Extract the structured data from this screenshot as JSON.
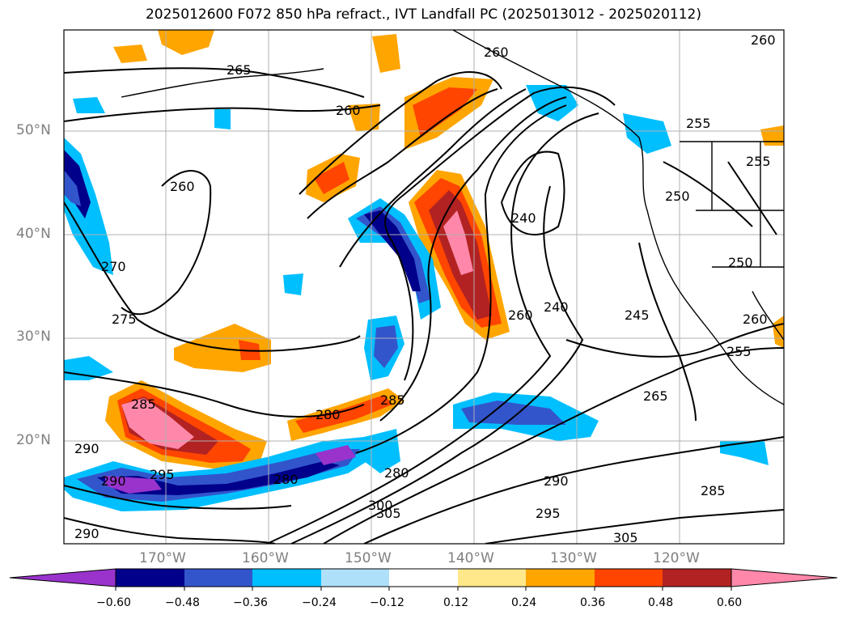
{
  "title": "2025012600 F072 850 hPa refract., IVT Landfall PC (2025013012 - 2025020112)",
  "lat_labels": [
    "50°N",
    "40°N",
    "30°N",
    "20°N"
  ],
  "lon_labels": [
    "170°W",
    "160°W",
    "150°W",
    "140°W",
    "130°W",
    "120°W"
  ],
  "colorbar": {
    "ticks": [
      "−0.60",
      "−0.48",
      "−0.36",
      "−0.24",
      "−0.12",
      "0.12",
      "0.24",
      "0.36",
      "0.48",
      "0.60"
    ],
    "colors": [
      "#9933cc",
      "#00008b",
      "#3355cc",
      "#00bfff",
      "#aee0fa",
      "#ffffff",
      "#ffe88a",
      "#ffa500",
      "#ff4500",
      "#b22222",
      "#ff88aa"
    ]
  },
  "contour_labels": [
    "265",
    "260",
    "260",
    "260",
    "260",
    "270",
    "275",
    "285",
    "290",
    "290",
    "295",
    "280",
    "280",
    "285",
    "290",
    "280",
    "300",
    "305",
    "305",
    "295",
    "290",
    "285",
    "265",
    "245",
    "240",
    "240",
    "260",
    "255",
    "255",
    "250",
    "250",
    "260",
    "255"
  ]
}
